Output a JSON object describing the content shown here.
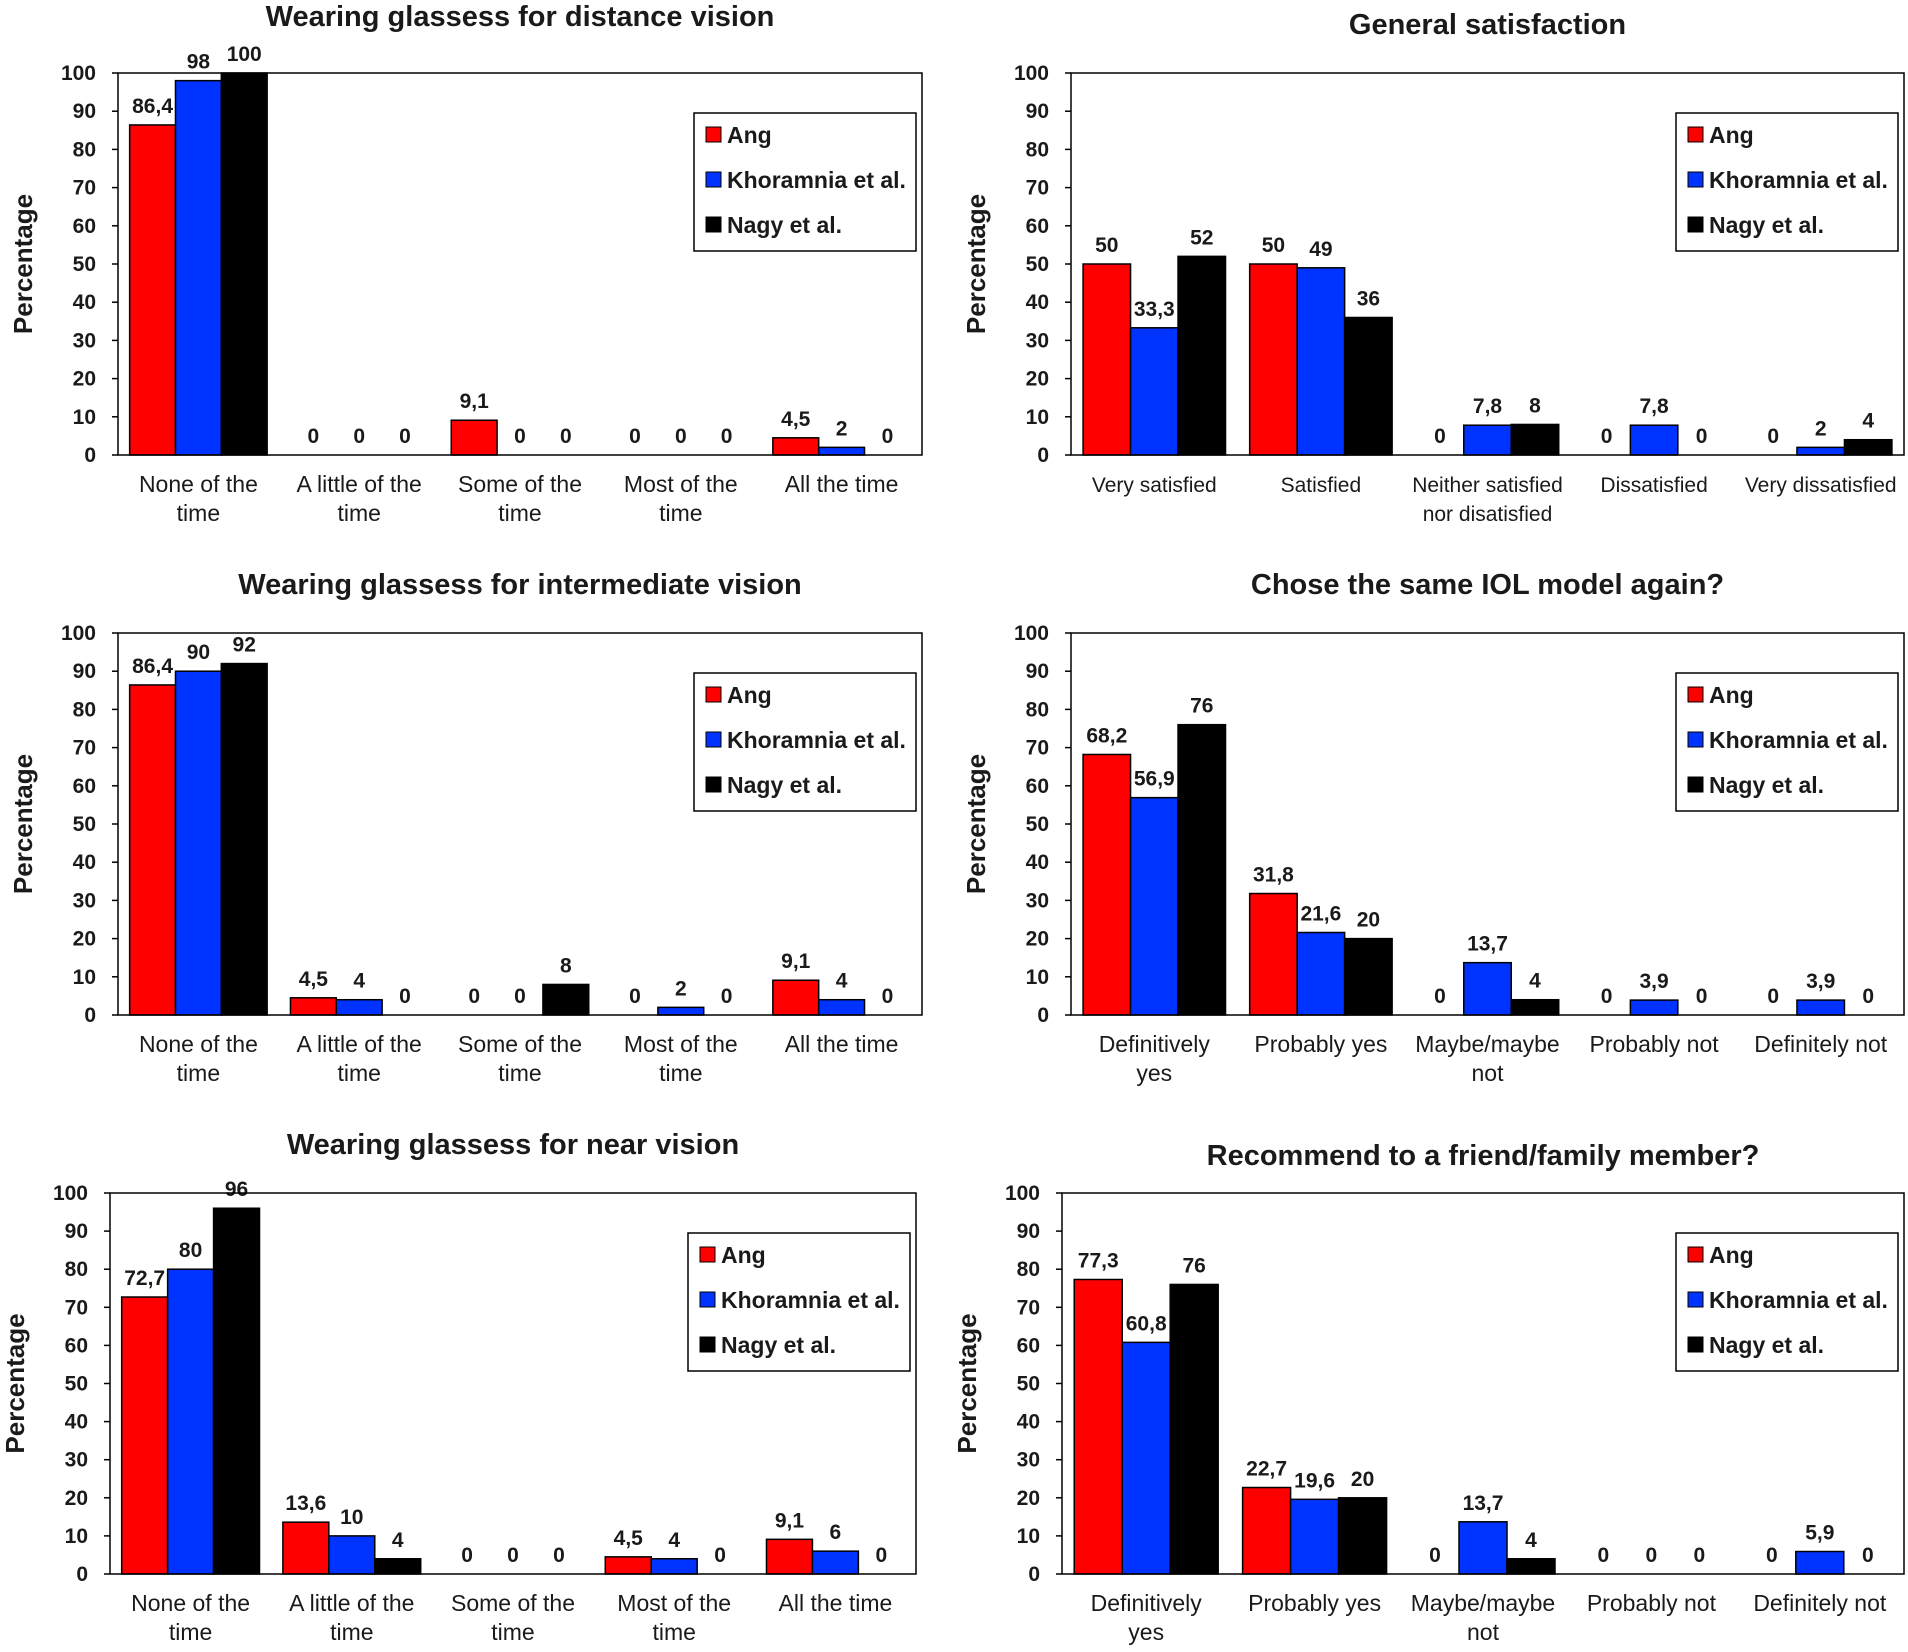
{
  "series_names": [
    "Ang",
    "Khoramnia et al.",
    "Nagy et al."
  ],
  "colors": {
    "Ang": "#ff0000",
    "Khoramnia et al.": "#0033ff",
    "Nagy et al.": "#000000"
  },
  "chart_data": [
    {
      "type": "bar",
      "title": "Wearing glassess for distance vision",
      "ylabel": "Percentage",
      "xlabel": "",
      "ylim": [
        0,
        100
      ],
      "yticks": [
        "0",
        "10",
        "20",
        "30",
        "40",
        "50",
        "60",
        "70",
        "80",
        "90",
        "100"
      ],
      "legend_position": "top-right",
      "categories": [
        [
          "None of the",
          "time"
        ],
        [
          "A little of the",
          "time"
        ],
        [
          "Some of the",
          "time"
        ],
        [
          "Most of the",
          "time"
        ],
        [
          "All the time"
        ]
      ],
      "series": [
        {
          "name": "Ang",
          "values": [
            86.4,
            0,
            9.1,
            0,
            4.5
          ],
          "labels": [
            "86,4",
            "0",
            "9,1",
            "0",
            "4,5"
          ]
        },
        {
          "name": "Khoramnia et al.",
          "values": [
            98,
            0,
            0,
            0,
            2
          ],
          "labels": [
            "98",
            "0",
            "0",
            "0",
            "2"
          ]
        },
        {
          "name": "Nagy et al.",
          "values": [
            100,
            0,
            0,
            0,
            0
          ],
          "labels": [
            "100",
            "0",
            "0",
            "0",
            "0"
          ]
        }
      ]
    },
    {
      "type": "bar",
      "title": "General satisfaction",
      "ylabel": "Percentage",
      "xlabel": "",
      "ylim": [
        0,
        100
      ],
      "yticks": [
        "0",
        "10",
        "20",
        "30",
        "40",
        "50",
        "60",
        "70",
        "80",
        "90",
        "100"
      ],
      "legend_position": "top-right",
      "categories": [
        [
          "Very satisfied"
        ],
        [
          "Satisfied"
        ],
        [
          "Neither satisfied",
          "nor disatisfied"
        ],
        [
          "Dissatisfied"
        ],
        [
          "Very dissatisfied"
        ]
      ],
      "series": [
        {
          "name": "Ang",
          "values": [
            50,
            50,
            0,
            0,
            0
          ],
          "labels": [
            "50",
            "50",
            "0",
            "0",
            "0"
          ]
        },
        {
          "name": "Khoramnia et al.",
          "values": [
            33.3,
            49,
            7.8,
            7.8,
            2
          ],
          "labels": [
            "33,3",
            "49",
            "7,8",
            "7,8",
            "2"
          ]
        },
        {
          "name": "Nagy et al.",
          "values": [
            52,
            36,
            8,
            0,
            4
          ],
          "labels": [
            "52",
            "36",
            "8",
            "0",
            "4"
          ]
        }
      ]
    },
    {
      "type": "bar",
      "title": "Wearing glassess for intermediate vision",
      "ylabel": "Percentage",
      "xlabel": "",
      "ylim": [
        0,
        100
      ],
      "yticks": [
        "0",
        "10",
        "20",
        "30",
        "40",
        "50",
        "60",
        "70",
        "80",
        "90",
        "100"
      ],
      "legend_position": "top-right",
      "categories": [
        [
          "None of the",
          "time"
        ],
        [
          "A little of the",
          "time"
        ],
        [
          "Some of the",
          "time"
        ],
        [
          "Most of the",
          "time"
        ],
        [
          "All the time"
        ]
      ],
      "series": [
        {
          "name": "Ang",
          "values": [
            86.4,
            4.5,
            0,
            0,
            9.1
          ],
          "labels": [
            "86,4",
            "4,5",
            "0",
            "0",
            "9,1"
          ]
        },
        {
          "name": "Khoramnia et al.",
          "values": [
            90,
            4,
            0,
            2,
            4
          ],
          "labels": [
            "90",
            "4",
            "0",
            "2",
            "4"
          ]
        },
        {
          "name": "Nagy et al.",
          "values": [
            92,
            0,
            8,
            0,
            0
          ],
          "labels": [
            "92",
            "0",
            "8",
            "0",
            "0"
          ]
        }
      ]
    },
    {
      "type": "bar",
      "title": "Chose the same IOL model again?",
      "ylabel": "Percentage",
      "xlabel": "",
      "ylim": [
        0,
        100
      ],
      "yticks": [
        "0",
        "10",
        "20",
        "30",
        "40",
        "50",
        "60",
        "70",
        "80",
        "90",
        "100"
      ],
      "legend_position": "top-right",
      "categories": [
        [
          "Definitively",
          "yes"
        ],
        [
          "Probably yes"
        ],
        [
          "Maybe/maybe",
          "not"
        ],
        [
          "Probably not"
        ],
        [
          "Definitely not"
        ]
      ],
      "series": [
        {
          "name": "Ang",
          "values": [
            68.2,
            31.8,
            0,
            0,
            0
          ],
          "labels": [
            "68,2",
            "31,8",
            "0",
            "0",
            "0"
          ]
        },
        {
          "name": "Khoramnia et al.",
          "values": [
            56.9,
            21.6,
            13.7,
            3.9,
            3.9
          ],
          "labels": [
            "56,9",
            "21,6",
            "13,7",
            "3,9",
            "3,9"
          ]
        },
        {
          "name": "Nagy et al.",
          "values": [
            76,
            20,
            4,
            0,
            0
          ],
          "labels": [
            "76",
            "20",
            "4",
            "0",
            "0"
          ]
        }
      ]
    },
    {
      "type": "bar",
      "title": "Wearing glassess for near vision",
      "ylabel": "Percentage",
      "xlabel": "",
      "ylim": [
        0,
        100
      ],
      "yticks": [
        "0",
        "10",
        "20",
        "30",
        "40",
        "50",
        "60",
        "70",
        "80",
        "90",
        "100"
      ],
      "legend_position": "top-right",
      "categories": [
        [
          "None of the",
          "time"
        ],
        [
          "A little of the",
          "time"
        ],
        [
          "Some of the",
          "time"
        ],
        [
          "Most of the",
          "time"
        ],
        [
          "All the time"
        ]
      ],
      "series": [
        {
          "name": "Ang",
          "values": [
            72.7,
            13.6,
            0,
            4.5,
            9.1
          ],
          "labels": [
            "72,7",
            "13,6",
            "0",
            "4,5",
            "9,1"
          ]
        },
        {
          "name": "Khoramnia et al.",
          "values": [
            80,
            10,
            0,
            4,
            6
          ],
          "labels": [
            "80",
            "10",
            "0",
            "4",
            "6"
          ]
        },
        {
          "name": "Nagy et al.",
          "values": [
            96,
            4,
            0,
            0,
            0
          ],
          "labels": [
            "96",
            "4",
            "0",
            "0",
            "0"
          ]
        }
      ]
    },
    {
      "type": "bar",
      "title": "Recommend to a friend/family member?",
      "ylabel": "Percentage",
      "xlabel": "",
      "ylim": [
        0,
        100
      ],
      "yticks": [
        "0",
        "10",
        "20",
        "30",
        "40",
        "50",
        "60",
        "70",
        "80",
        "90",
        "100"
      ],
      "legend_position": "top-right",
      "categories": [
        [
          "Definitively",
          "yes"
        ],
        [
          "Probably yes"
        ],
        [
          "Maybe/maybe",
          "not"
        ],
        [
          "Probably not"
        ],
        [
          "Definitely not"
        ]
      ],
      "series": [
        {
          "name": "Ang",
          "values": [
            77.3,
            22.7,
            0,
            0,
            0
          ],
          "labels": [
            "77,3",
            "22,7",
            "0",
            "0",
            "0"
          ]
        },
        {
          "name": "Khoramnia et al.",
          "values": [
            60.8,
            19.6,
            13.7,
            0,
            5.9
          ],
          "labels": [
            "60,8",
            "19,6",
            "13,7",
            "0",
            "5,9"
          ]
        },
        {
          "name": "Nagy et al.",
          "values": [
            76,
            20,
            4,
            0,
            0
          ],
          "labels": [
            "76",
            "20",
            "4",
            "0",
            "0"
          ]
        }
      ]
    }
  ]
}
